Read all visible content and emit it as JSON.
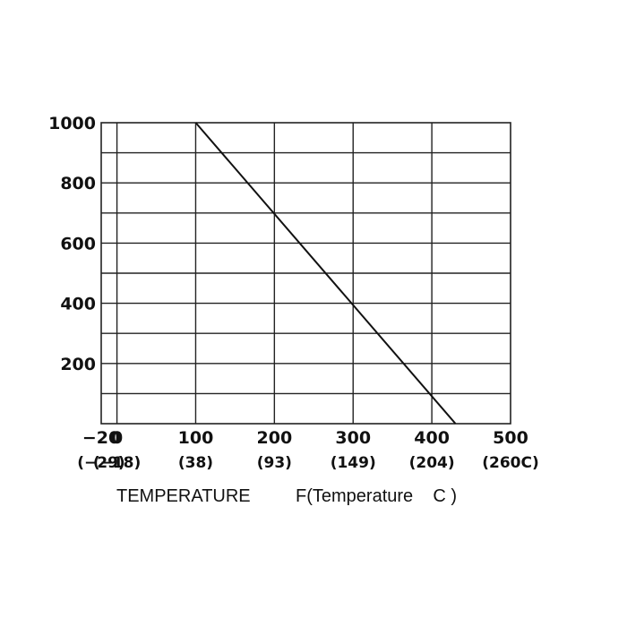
{
  "chart_data": {
    "type": "line",
    "x_axis": {
      "lim": [
        -20,
        500
      ],
      "ticks": [
        {
          "value": -20,
          "label": "−20",
          "sub": "(−29)"
        },
        {
          "value": 0,
          "label": "0",
          "sub": "(−18)"
        },
        {
          "value": 100,
          "label": "100",
          "sub": "(38)"
        },
        {
          "value": 200,
          "label": "200",
          "sub": "(93)"
        },
        {
          "value": 300,
          "label": "300",
          "sub": "(149)"
        },
        {
          "value": 400,
          "label": "400",
          "sub": "(204)"
        },
        {
          "value": 500,
          "label": "500",
          "sub": "(260C)"
        }
      ],
      "label_left": "TEMPERATURE",
      "label_right": "F(Temperature    C )"
    },
    "y_axis": {
      "lim": [
        0,
        1000
      ],
      "ticks": [
        {
          "value": 200,
          "label": "200"
        },
        {
          "value": 400,
          "label": "400"
        },
        {
          "value": 600,
          "label": "600"
        },
        {
          "value": 800,
          "label": "800"
        },
        {
          "value": 1000,
          "label": "1000"
        }
      ],
      "minor_gridlines": [
        100,
        300,
        500,
        700,
        900
      ]
    },
    "grid": true,
    "series": [
      {
        "x": [
          100,
          430
        ],
        "y": [
          1000,
          0
        ]
      }
    ]
  }
}
